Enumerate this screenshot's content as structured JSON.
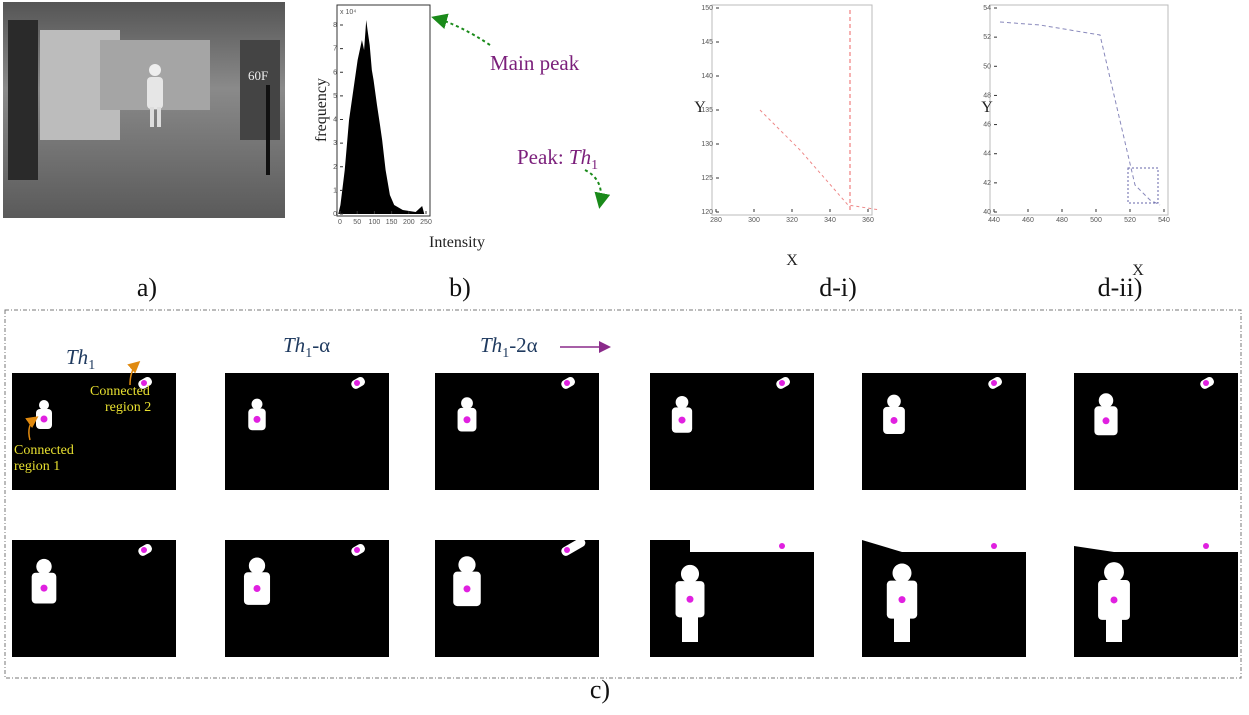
{
  "panels": {
    "a": {
      "label": "a)",
      "overlay_text": "60F"
    },
    "b": {
      "label": "b)",
      "y_axis_label": "frequency",
      "x_axis_label": "Intensity",
      "y_scale_label": "x 10⁴",
      "xticks": [
        "0",
        "50",
        "100",
        "150",
        "200",
        "250"
      ],
      "yticks": [
        "0",
        "1",
        "2",
        "3",
        "4",
        "5",
        "6",
        "7",
        "8"
      ],
      "main_peak": "Main peak",
      "second_peak": {
        "prefix": "Peak: ",
        "symbol": "Th",
        "subscript": "1"
      }
    },
    "d_i": {
      "label": "d-i)",
      "x_axis_label": "X",
      "y_axis_label": "Y",
      "xticks": [
        "280",
        "300",
        "320",
        "340",
        "360"
      ],
      "yticks": [
        "120",
        "125",
        "130",
        "135",
        "140",
        "145",
        "150"
      ]
    },
    "d_ii": {
      "label": "d-ii)",
      "x_axis_label": "X",
      "y_axis_label": "Y",
      "xticks": [
        "440",
        "460",
        "480",
        "500",
        "520",
        "540"
      ],
      "yticks": [
        "40",
        "42",
        "44",
        "46",
        "48",
        "50",
        "52",
        "54"
      ]
    },
    "c": {
      "label": "c)",
      "headers": [
        {
          "symbol": "Th",
          "subscript": "1"
        },
        {
          "symbol": "Th",
          "subscript": "1",
          "suffix": "-α"
        },
        {
          "symbol": "Th",
          "subscript": "1",
          "suffix": "-2α"
        }
      ],
      "region_labels": [
        {
          "line1": "Connected",
          "line2": "region 1"
        },
        {
          "line1": "Connected",
          "line2": "region 2"
        }
      ]
    }
  }
}
